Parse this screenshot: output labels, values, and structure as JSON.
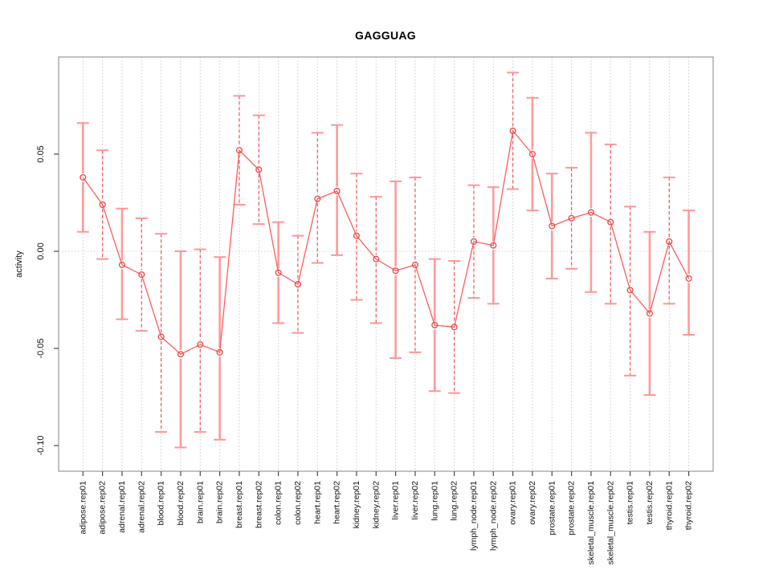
{
  "chart_data": {
    "type": "line",
    "title": "GAGGUAG",
    "xlabel": "",
    "ylabel": "activity",
    "ylim": [
      -0.113,
      0.1
    ],
    "grid": {
      "vertical": "dotted gray line at every category",
      "horizontal": "dotted gray line at y=0"
    },
    "legend": "none",
    "marker": "open-circle",
    "yticks": [
      {
        "label": "0.05",
        "value": 0.05
      },
      {
        "label": "0.00",
        "value": 0.0
      },
      {
        "label": "-0.05",
        "value": -0.05
      },
      {
        "label": "-0.10",
        "value": -0.1
      }
    ],
    "points": [
      {
        "label": "adipose.rep01",
        "value": 0.038,
        "lo": 0.01,
        "hi": 0.066,
        "bar_style": "solid"
      },
      {
        "label": "adipose.rep02",
        "value": 0.024,
        "lo": -0.004,
        "hi": 0.052,
        "bar_style": "dashed"
      },
      {
        "label": "adrenal.rep01",
        "value": -0.007,
        "lo": -0.035,
        "hi": 0.022,
        "bar_style": "solid"
      },
      {
        "label": "adrenal.rep02",
        "value": -0.012,
        "lo": -0.041,
        "hi": 0.017,
        "bar_style": "dashed"
      },
      {
        "label": "blood.rep01",
        "value": -0.044,
        "lo": -0.093,
        "hi": 0.009,
        "bar_style": "dashed"
      },
      {
        "label": "blood.rep02",
        "value": -0.053,
        "lo": -0.101,
        "hi": 0.0,
        "bar_style": "solid"
      },
      {
        "label": "brain.rep01",
        "value": -0.048,
        "lo": -0.093,
        "hi": 0.001,
        "bar_style": "dashed"
      },
      {
        "label": "brain.rep02",
        "value": -0.052,
        "lo": -0.097,
        "hi": -0.003,
        "bar_style": "solid"
      },
      {
        "label": "breast.rep01",
        "value": 0.052,
        "lo": 0.024,
        "hi": 0.08,
        "bar_style": "dashed"
      },
      {
        "label": "breast.rep02",
        "value": 0.042,
        "lo": 0.014,
        "hi": 0.07,
        "bar_style": "dashed"
      },
      {
        "label": "colon.rep01",
        "value": -0.011,
        "lo": -0.037,
        "hi": 0.015,
        "bar_style": "solid"
      },
      {
        "label": "colon.rep02",
        "value": -0.017,
        "lo": -0.042,
        "hi": 0.008,
        "bar_style": "dashed"
      },
      {
        "label": "heart.rep01",
        "value": 0.027,
        "lo": -0.006,
        "hi": 0.061,
        "bar_style": "dashed"
      },
      {
        "label": "heart.rep02",
        "value": 0.031,
        "lo": -0.002,
        "hi": 0.065,
        "bar_style": "solid"
      },
      {
        "label": "kidney.rep01",
        "value": 0.008,
        "lo": -0.025,
        "hi": 0.04,
        "bar_style": "dashed"
      },
      {
        "label": "kidney.rep02",
        "value": -0.004,
        "lo": -0.037,
        "hi": 0.028,
        "bar_style": "dashed"
      },
      {
        "label": "liver.rep01",
        "value": -0.01,
        "lo": -0.055,
        "hi": 0.036,
        "bar_style": "solid"
      },
      {
        "label": "liver.rep02",
        "value": -0.007,
        "lo": -0.052,
        "hi": 0.038,
        "bar_style": "dashed"
      },
      {
        "label": "lung.rep01",
        "value": -0.038,
        "lo": -0.072,
        "hi": -0.004,
        "bar_style": "solid"
      },
      {
        "label": "lung.rep02",
        "value": -0.039,
        "lo": -0.073,
        "hi": -0.005,
        "bar_style": "dashed"
      },
      {
        "label": "lymph_node.rep01",
        "value": 0.005,
        "lo": -0.024,
        "hi": 0.034,
        "bar_style": "dashed"
      },
      {
        "label": "lymph_node.rep02",
        "value": 0.003,
        "lo": -0.027,
        "hi": 0.033,
        "bar_style": "solid"
      },
      {
        "label": "ovary.rep01",
        "value": 0.062,
        "lo": 0.032,
        "hi": 0.092,
        "bar_style": "dashed"
      },
      {
        "label": "ovary.rep02",
        "value": 0.05,
        "lo": 0.021,
        "hi": 0.079,
        "bar_style": "solid"
      },
      {
        "label": "prostate.rep01",
        "value": 0.013,
        "lo": -0.014,
        "hi": 0.04,
        "bar_style": "solid"
      },
      {
        "label": "prostate.rep02",
        "value": 0.017,
        "lo": -0.009,
        "hi": 0.043,
        "bar_style": "dashed"
      },
      {
        "label": "skeletal_muscle.rep01",
        "value": 0.02,
        "lo": -0.021,
        "hi": 0.061,
        "bar_style": "solid"
      },
      {
        "label": "skeletal_muscle.rep02",
        "value": 0.015,
        "lo": -0.027,
        "hi": 0.055,
        "bar_style": "dashed"
      },
      {
        "label": "testis.rep01",
        "value": -0.02,
        "lo": -0.064,
        "hi": 0.023,
        "bar_style": "dashed"
      },
      {
        "label": "testis.rep02",
        "value": -0.032,
        "lo": -0.074,
        "hi": 0.01,
        "bar_style": "solid"
      },
      {
        "label": "thyroid.rep01",
        "value": 0.005,
        "lo": -0.027,
        "hi": 0.038,
        "bar_style": "dashed"
      },
      {
        "label": "thyroid.rep02",
        "value": -0.014,
        "lo": -0.043,
        "hi": 0.021,
        "bar_style": "solid"
      }
    ],
    "colors": {
      "point_stroke": "#f04545",
      "series_line": "#ff5c5c",
      "bar_dashed": "#f25252",
      "bar_solid": "#ff9a9a",
      "cap": "#ff9595",
      "grid": "#cccccc",
      "zero_line": "#d6d6d6",
      "border": "#9a9a9a",
      "tick": "#4a4a4a",
      "text": "#111111"
    }
  }
}
